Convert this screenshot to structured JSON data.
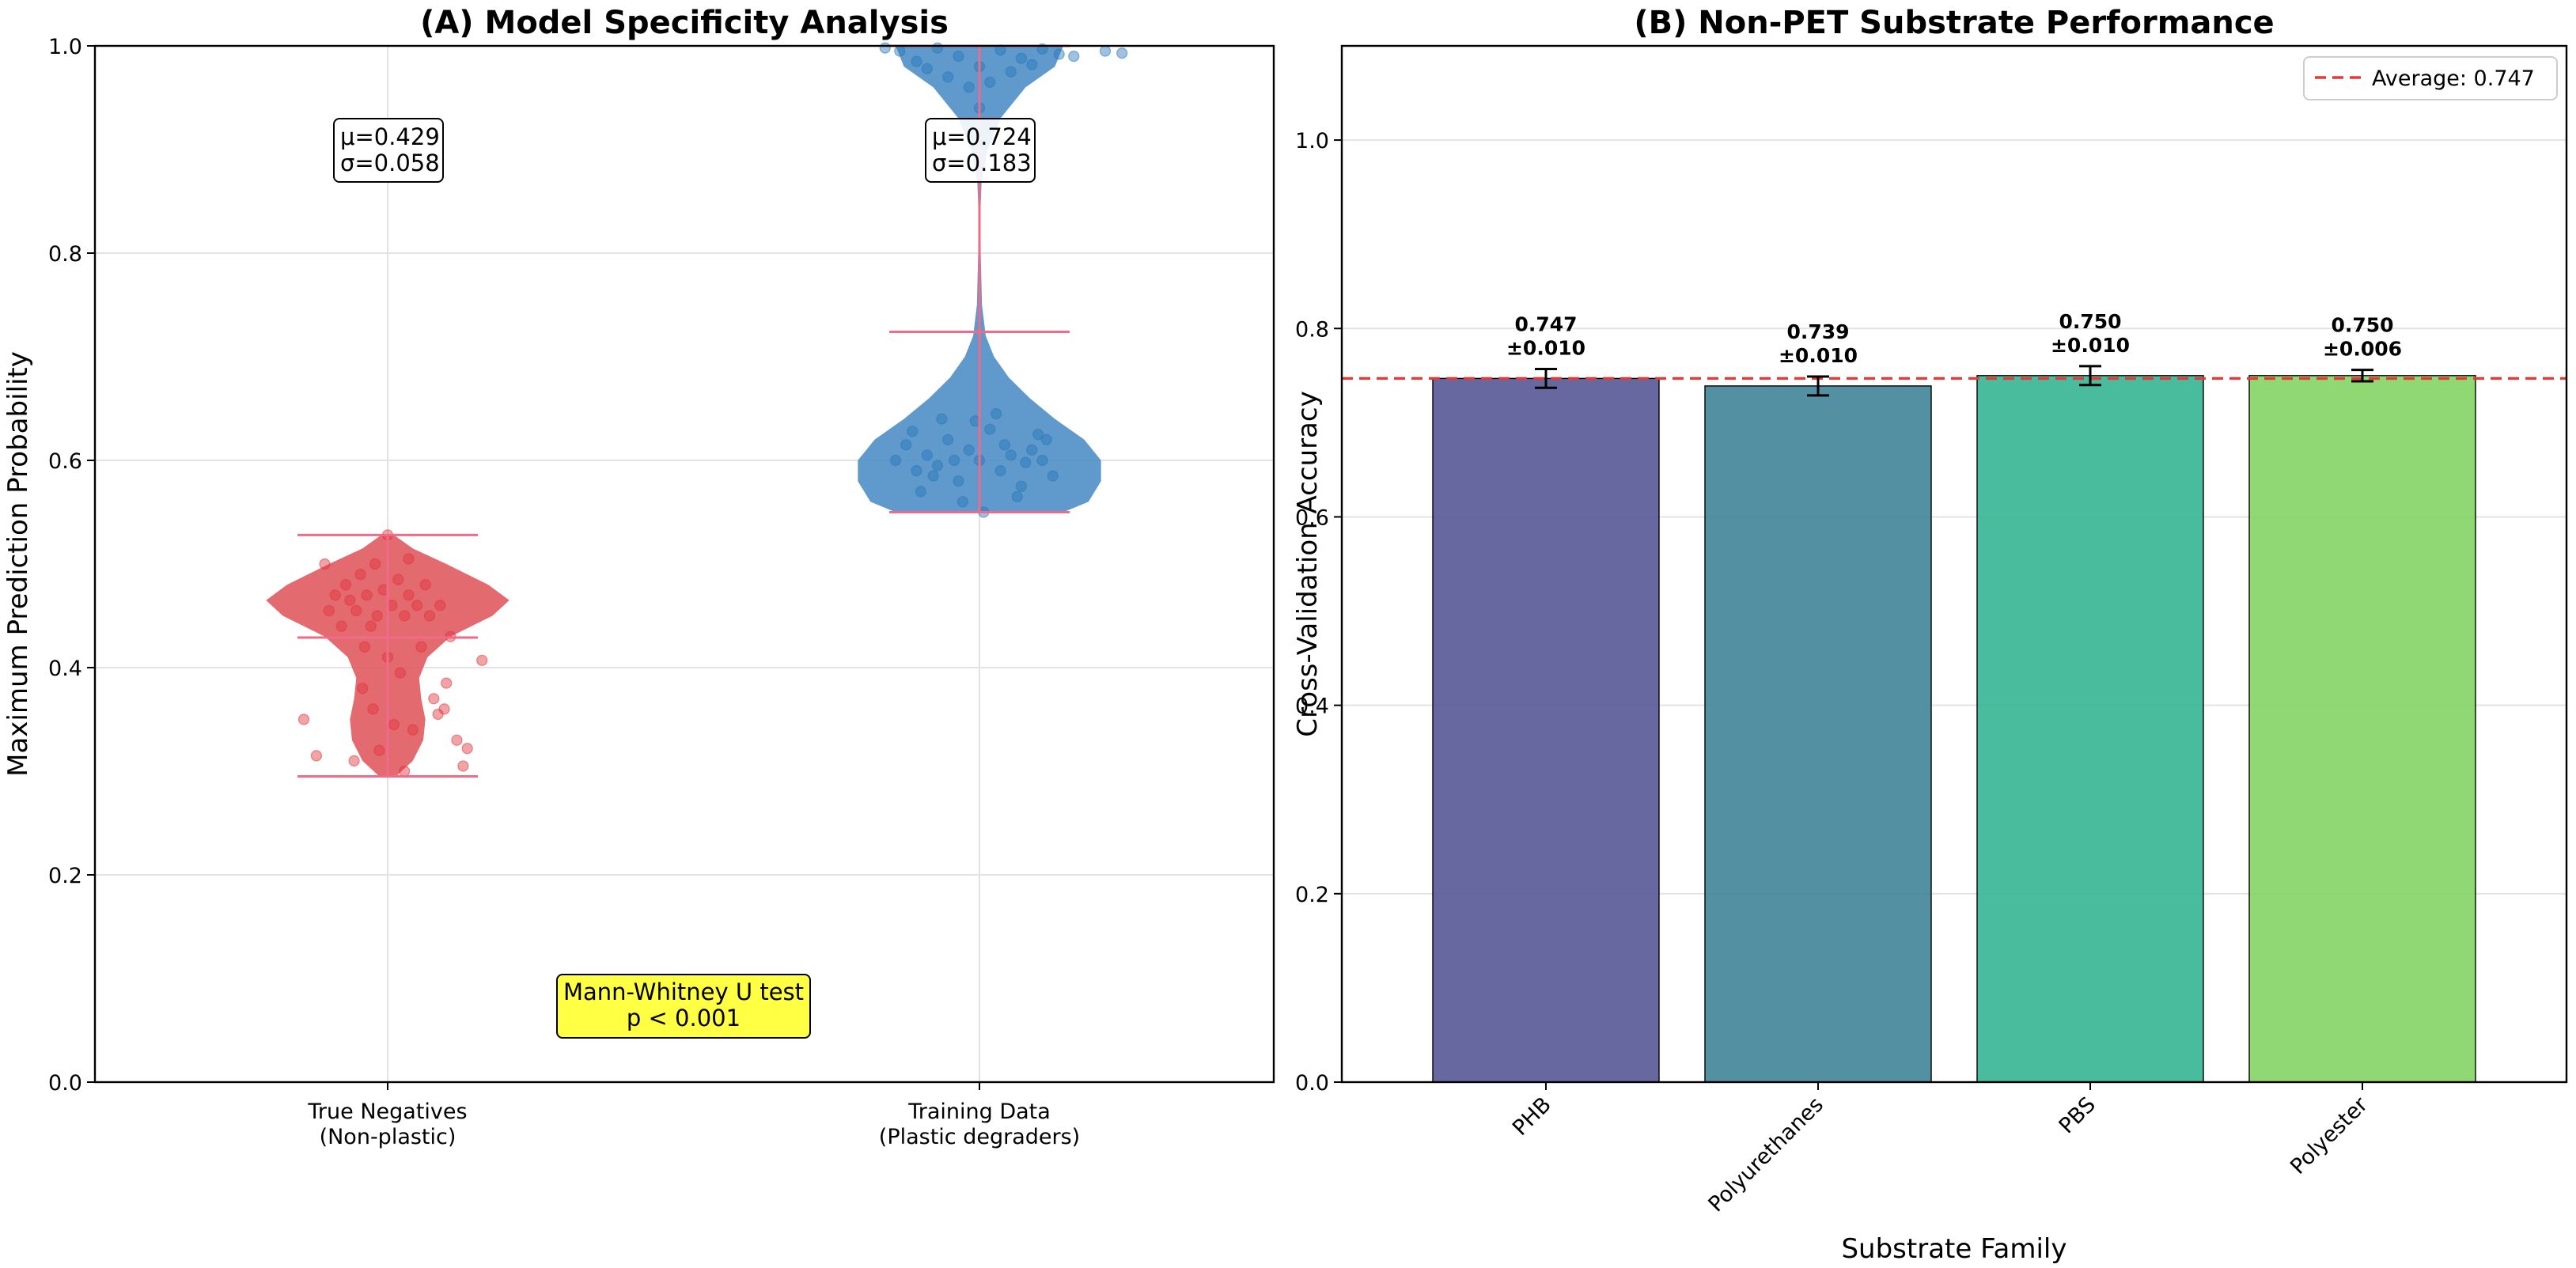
{
  "chart_data": [
    {
      "type": "violin",
      "title": "(A) Model Specificity Analysis",
      "xlabel": "",
      "ylabel": "Maximum Prediction Probability",
      "ylim": [
        0.0,
        1.0
      ],
      "yticks": [
        "0.0",
        "0.2",
        "0.4",
        "0.6",
        "0.8",
        "1.0"
      ],
      "grid": true,
      "groups": [
        {
          "label_line1": "True Negatives",
          "label_line2": "(Non-plastic)",
          "color": "#e05a5f",
          "point_color": "#e0353b",
          "mean": 0.429,
          "min": 0.295,
          "max": 0.528,
          "stat_mu": "μ=0.429",
          "stat_sigma": "σ=0.058",
          "profile": [
            [
              0.295,
              0.04
            ],
            [
              0.31,
              0.12
            ],
            [
              0.33,
              0.17
            ],
            [
              0.35,
              0.18
            ],
            [
              0.37,
              0.16
            ],
            [
              0.39,
              0.15
            ],
            [
              0.41,
              0.19
            ],
            [
              0.43,
              0.3
            ],
            [
              0.45,
              0.5
            ],
            [
              0.465,
              0.58
            ],
            [
              0.48,
              0.48
            ],
            [
              0.5,
              0.28
            ],
            [
              0.515,
              0.12
            ],
            [
              0.528,
              0.03
            ]
          ],
          "points": [
            {
              "x": -0.4,
              "y": 0.35
            },
            {
              "x": -0.34,
              "y": 0.315
            },
            {
              "x": -0.3,
              "y": 0.5
            },
            {
              "x": -0.25,
              "y": 0.47
            },
            {
              "x": -0.22,
              "y": 0.44
            },
            {
              "x": -0.2,
              "y": 0.48
            },
            {
              "x": -0.18,
              "y": 0.465
            },
            {
              "x": -0.15,
              "y": 0.455
            },
            {
              "x": -0.13,
              "y": 0.49
            },
            {
              "x": -0.12,
              "y": 0.38
            },
            {
              "x": -0.1,
              "y": 0.47
            },
            {
              "x": -0.08,
              "y": 0.44
            },
            {
              "x": -0.07,
              "y": 0.36
            },
            {
              "x": -0.05,
              "y": 0.45
            },
            {
              "x": -0.04,
              "y": 0.32
            },
            {
              "x": -0.02,
              "y": 0.475
            },
            {
              "x": 0.0,
              "y": 0.41
            },
            {
              "x": 0.02,
              "y": 0.46
            },
            {
              "x": 0.03,
              "y": 0.345
            },
            {
              "x": 0.05,
              "y": 0.485
            },
            {
              "x": 0.06,
              "y": 0.395
            },
            {
              "x": 0.08,
              "y": 0.45
            },
            {
              "x": 0.1,
              "y": 0.47
            },
            {
              "x": 0.12,
              "y": 0.34
            },
            {
              "x": 0.14,
              "y": 0.46
            },
            {
              "x": 0.16,
              "y": 0.42
            },
            {
              "x": 0.18,
              "y": 0.48
            },
            {
              "x": 0.2,
              "y": 0.45
            },
            {
              "x": 0.22,
              "y": 0.37
            },
            {
              "x": 0.25,
              "y": 0.46
            },
            {
              "x": 0.28,
              "y": 0.385
            },
            {
              "x": 0.3,
              "y": 0.43
            },
            {
              "x": 0.33,
              "y": 0.33
            },
            {
              "x": 0.36,
              "y": 0.305
            },
            {
              "x": 0.38,
              "y": 0.322
            },
            {
              "x": 0.45,
              "y": 0.407
            },
            {
              "x": -0.16,
              "y": 0.31
            },
            {
              "x": 0.08,
              "y": 0.3
            },
            {
              "x": -0.06,
              "y": 0.5
            },
            {
              "x": 0.1,
              "y": 0.505
            },
            {
              "x": -0.28,
              "y": 0.455
            },
            {
              "x": 0.24,
              "y": 0.355
            },
            {
              "x": 0.27,
              "y": 0.36
            },
            {
              "x": 0.0,
              "y": 0.528
            },
            {
              "x": -0.11,
              "y": 0.42
            }
          ]
        },
        {
          "label_line1": "Training Data",
          "label_line2": "(Plastic degraders)",
          "color": "#4f8fc6",
          "point_color": "#2778b8",
          "mean": 0.724,
          "min": 0.55,
          "max": 1.0,
          "stat_mu": "μ=0.724",
          "stat_sigma": "σ=0.183",
          "profile": [
            [
              0.55,
              0.4
            ],
            [
              0.56,
              0.52
            ],
            [
              0.58,
              0.58
            ],
            [
              0.6,
              0.58
            ],
            [
              0.62,
              0.5
            ],
            [
              0.64,
              0.36
            ],
            [
              0.66,
              0.24
            ],
            [
              0.68,
              0.14
            ],
            [
              0.7,
              0.07
            ],
            [
              0.72,
              0.03
            ],
            [
              0.75,
              0.012
            ],
            [
              0.8,
              0.006
            ],
            [
              0.84,
              0.005
            ],
            [
              0.87,
              0.01
            ],
            [
              0.9,
              0.04
            ],
            [
              0.93,
              0.1
            ],
            [
              0.96,
              0.22
            ],
            [
              0.98,
              0.36
            ],
            [
              1.0,
              0.4
            ]
          ],
          "points": [
            {
              "x": -0.4,
              "y": 0.6
            },
            {
              "x": -0.35,
              "y": 0.615
            },
            {
              "x": -0.3,
              "y": 0.59
            },
            {
              "x": -0.25,
              "y": 0.605
            },
            {
              "x": -0.2,
              "y": 0.595
            },
            {
              "x": -0.15,
              "y": 0.62
            },
            {
              "x": -0.1,
              "y": 0.58
            },
            {
              "x": -0.05,
              "y": 0.61
            },
            {
              "x": 0.0,
              "y": 0.6
            },
            {
              "x": 0.05,
              "y": 0.63
            },
            {
              "x": 0.1,
              "y": 0.59
            },
            {
              "x": 0.15,
              "y": 0.605
            },
            {
              "x": 0.2,
              "y": 0.575
            },
            {
              "x": 0.25,
              "y": 0.61
            },
            {
              "x": 0.3,
              "y": 0.6
            },
            {
              "x": 0.35,
              "y": 0.585
            },
            {
              "x": -0.28,
              "y": 0.57
            },
            {
              "x": -0.18,
              "y": 0.64
            },
            {
              "x": -0.08,
              "y": 0.56
            },
            {
              "x": 0.08,
              "y": 0.645
            },
            {
              "x": 0.18,
              "y": 0.565
            },
            {
              "x": 0.28,
              "y": 0.625
            },
            {
              "x": -0.12,
              "y": 0.6
            },
            {
              "x": 0.12,
              "y": 0.615
            },
            {
              "x": 0.02,
              "y": 0.55
            },
            {
              "x": -0.32,
              "y": 0.628
            },
            {
              "x": 0.32,
              "y": 0.62
            },
            {
              "x": -0.22,
              "y": 0.585
            },
            {
              "x": 0.22,
              "y": 0.598
            },
            {
              "x": -0.02,
              "y": 0.638
            },
            {
              "x": -0.38,
              "y": 0.995
            },
            {
              "x": -0.3,
              "y": 0.985
            },
            {
              "x": -0.2,
              "y": 0.998
            },
            {
              "x": -0.1,
              "y": 0.99
            },
            {
              "x": 0.0,
              "y": 0.98
            },
            {
              "x": 0.1,
              "y": 0.996
            },
            {
              "x": 0.2,
              "y": 0.988
            },
            {
              "x": 0.3,
              "y": 0.997
            },
            {
              "x": 0.38,
              "y": 0.992
            },
            {
              "x": 0.6,
              "y": 0.995
            },
            {
              "x": 0.68,
              "y": 0.993
            },
            {
              "x": -0.15,
              "y": 0.97
            },
            {
              "x": 0.15,
              "y": 0.975
            },
            {
              "x": -0.05,
              "y": 0.96
            },
            {
              "x": 0.05,
              "y": 0.965
            },
            {
              "x": 0.25,
              "y": 0.982
            },
            {
              "x": -0.25,
              "y": 0.978
            },
            {
              "x": 0.45,
              "y": 0.99
            },
            {
              "x": -0.45,
              "y": 0.998
            },
            {
              "x": 0.0,
              "y": 0.94
            }
          ]
        }
      ],
      "annotation": {
        "line1": "Mann-Whitney U test",
        "line2": "p < 0.001",
        "color": "#ffff44"
      }
    },
    {
      "type": "bar",
      "title": "(B) Non-PET Substrate Performance",
      "xlabel": "Substrate Family",
      "ylabel": "Cross-Validation Accuracy",
      "ylim": [
        0.0,
        1.1
      ],
      "yticks": [
        "0.0",
        "0.2",
        "0.4",
        "0.6",
        "0.8",
        "1.0"
      ],
      "grid": true,
      "categories": [
        "PHB",
        "Polyurethanes",
        "PBS",
        "Polyester"
      ],
      "values": [
        0.747,
        0.739,
        0.75,
        0.75
      ],
      "errors": [
        0.01,
        0.01,
        0.01,
        0.006
      ],
      "value_labels": [
        "0.747",
        "0.739",
        "0.750",
        "0.750"
      ],
      "error_labels": [
        "±0.010",
        "±0.010",
        "±0.010",
        "±0.006"
      ],
      "colors": [
        "#5b5b99",
        "#44879a",
        "#3bb696",
        "#86d567"
      ],
      "average": 0.747,
      "average_color": "#e53935",
      "legend": {
        "position": "top-right",
        "label": "Average: 0.747"
      }
    }
  ]
}
